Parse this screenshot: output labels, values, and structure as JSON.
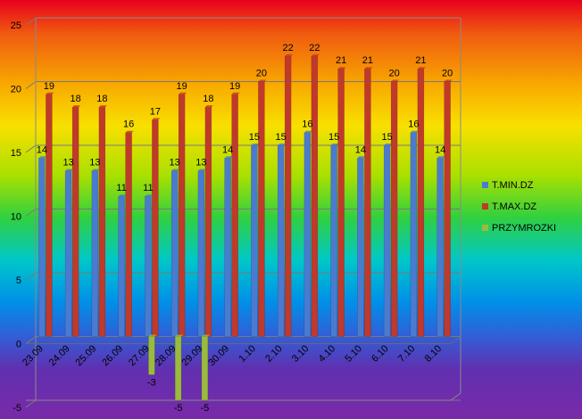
{
  "chart_data": {
    "type": "bar",
    "categories": [
      "23.09",
      "24.09",
      "25.09",
      "26.09",
      "27.09",
      "28.09",
      "29.09",
      "30.09",
      "1.10",
      "2.10",
      "3.10",
      "4.10",
      "5.10",
      "6.10",
      "7.10",
      "8.10"
    ],
    "series": [
      {
        "name": "T.MIN.DZ",
        "color": "#4a7bd0",
        "values": [
          14,
          13,
          13,
          11,
          11,
          13,
          13,
          14,
          15,
          15,
          16,
          15,
          14,
          15,
          16,
          14
        ]
      },
      {
        "name": "T.MAX.DZ",
        "color": "#c0392b",
        "values": [
          19,
          18,
          18,
          16,
          17,
          19,
          18,
          19,
          20,
          22,
          22,
          21,
          21,
          20,
          21,
          20
        ]
      },
      {
        "name": "PRZYMROZKI",
        "color": "#9bbb3c",
        "values": [
          null,
          null,
          null,
          null,
          -3,
          -5,
          -5,
          null,
          null,
          null,
          null,
          null,
          null,
          null,
          null,
          null
        ]
      }
    ],
    "ylim": [
      -5,
      25
    ],
    "yticks": [
      "-5",
      "0",
      "5",
      "10",
      "15",
      "20",
      "25"
    ],
    "grid": true,
    "legend": "right"
  }
}
